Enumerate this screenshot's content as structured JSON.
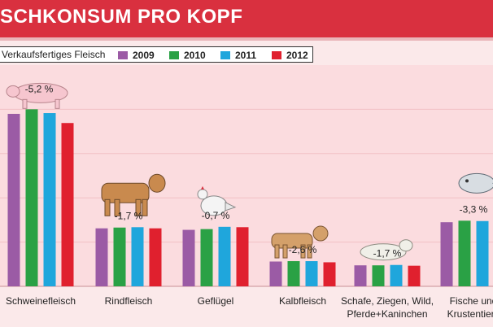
{
  "header": {
    "title": "SCHKONSUM PRO KOPF"
  },
  "legend": {
    "title": "Verkaufsfertiges Fleisch",
    "items": [
      {
        "label": "2009",
        "color": "#9b5ba5"
      },
      {
        "label": "2010",
        "color": "#2aa145"
      },
      {
        "label": "2011",
        "color": "#1fa6dc"
      },
      {
        "label": "2012",
        "color": "#e0202e"
      }
    ]
  },
  "chart_data": {
    "type": "bar",
    "title": "",
    "xlabel": "",
    "ylabel": "",
    "ylim": [
      0,
      55
    ],
    "categories": [
      "Schweinefleisch",
      "Rindfleisch",
      "Geflügel",
      "Kalbfleisch",
      "Schafe, Ziegen, Wild, Pferde+Kaninchen",
      "Fische und Krustentiere"
    ],
    "category_lines": [
      [
        "Schweinefleisch"
      ],
      [
        "Rindfleisch"
      ],
      [
        "Geflügel"
      ],
      [
        "Kalbfleisch"
      ],
      [
        "Schafe, Ziegen, Wild,",
        "Pferde+Kaninchen"
      ],
      [
        "Fische und",
        "Krustentiere"
      ]
    ],
    "change_labels": [
      "-5,2 %",
      "-1,7 %",
      "-0,7 %",
      "-2,6 %",
      "-1,7 %",
      "-3,3 %"
    ],
    "icons": [
      "pig-icon",
      "cow-icon",
      "chicken-icon",
      "calf-icon",
      "sheep-icon",
      "fish-icon"
    ],
    "series": [
      {
        "name": "2009",
        "values": [
          45.2,
          15.2,
          14.8,
          6.5,
          5.5,
          16.8
        ]
      },
      {
        "name": "2010",
        "values": [
          46.4,
          15.4,
          15.0,
          6.6,
          5.5,
          17.2
        ]
      },
      {
        "name": "2011",
        "values": [
          45.4,
          15.5,
          15.6,
          6.6,
          5.6,
          17.1
        ]
      },
      {
        "name": "2012",
        "values": [
          42.8,
          15.2,
          15.5,
          6.3,
          5.4,
          16.6
        ]
      }
    ]
  }
}
